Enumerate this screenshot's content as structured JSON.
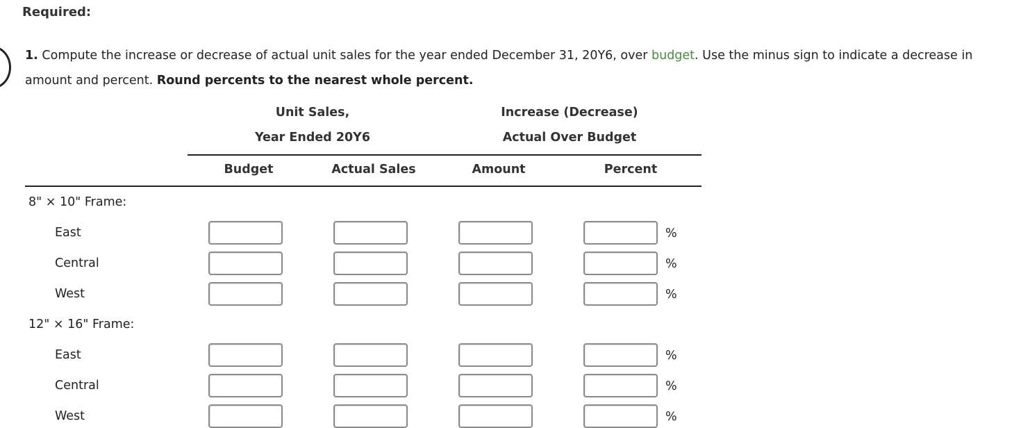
{
  "heading": "Required:",
  "question": {
    "number": "1.",
    "text_before": " Compute the increase or decrease of actual unit sales for the year ended December 31, 20Y6, over ",
    "term": "budget",
    "text_after": ". Use the minus sign to indicate a decrease in amount and percent. ",
    "bold_instruction": "Round percents to the nearest whole percent."
  },
  "table": {
    "group_headers": {
      "unit_sales_line1": "Unit Sales,",
      "unit_sales_line2": "Year Ended 20Y6",
      "change_line1": "Increase (Decrease)",
      "change_line2": "Actual Over Budget"
    },
    "columns": {
      "budget": "Budget",
      "actual_sales": "Actual Sales",
      "amount": "Amount",
      "percent": "Percent"
    },
    "percent_symbol": "%",
    "groups": [
      {
        "label": "8\" × 10\" Frame:",
        "rows": [
          {
            "label": "East",
            "budget": "",
            "actual_sales": "",
            "amount": "",
            "percent": ""
          },
          {
            "label": "Central",
            "budget": "",
            "actual_sales": "",
            "amount": "",
            "percent": ""
          },
          {
            "label": "West",
            "budget": "",
            "actual_sales": "",
            "amount": "",
            "percent": ""
          }
        ]
      },
      {
        "label": "12\" × 16\" Frame:",
        "rows": [
          {
            "label": "East",
            "budget": "",
            "actual_sales": "",
            "amount": "",
            "percent": ""
          },
          {
            "label": "Central",
            "budget": "",
            "actual_sales": "",
            "amount": "",
            "percent": ""
          },
          {
            "label": "West",
            "budget": "",
            "actual_sales": "",
            "amount": "",
            "percent": ""
          }
        ]
      }
    ]
  }
}
